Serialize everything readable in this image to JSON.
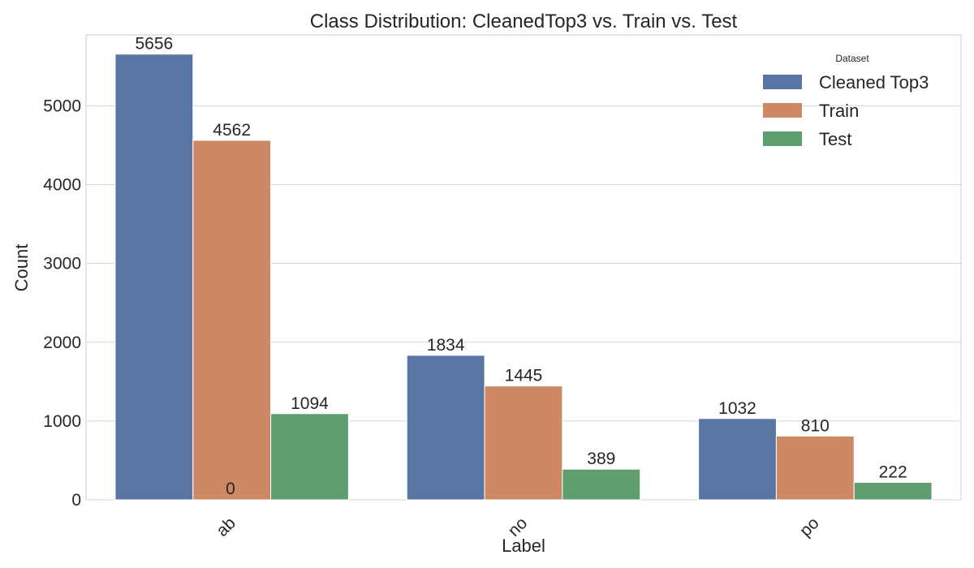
{
  "chart_data": {
    "type": "bar",
    "title": "Class Distribution: CleanedTop3 vs. Train vs. Test",
    "xlabel": "Label",
    "ylabel": "Count",
    "categories": [
      "ab",
      "no",
      "po"
    ],
    "series": [
      {
        "name": "Cleaned Top3",
        "values": [
          5656,
          1834,
          1032
        ],
        "color": "#5975a4"
      },
      {
        "name": "Train",
        "values": [
          4562,
          1445,
          810
        ],
        "color": "#cc8963"
      },
      {
        "name": "Test",
        "values": [
          1094,
          389,
          222
        ],
        "color": "#5f9e6e"
      }
    ],
    "extra_labels": [
      "0"
    ],
    "ylim": [
      0,
      5900
    ],
    "yticks": [
      0,
      1000,
      2000,
      3000,
      4000,
      5000
    ],
    "grid": true,
    "legend": {
      "title": "Dataset",
      "placement": "top-right"
    }
  }
}
